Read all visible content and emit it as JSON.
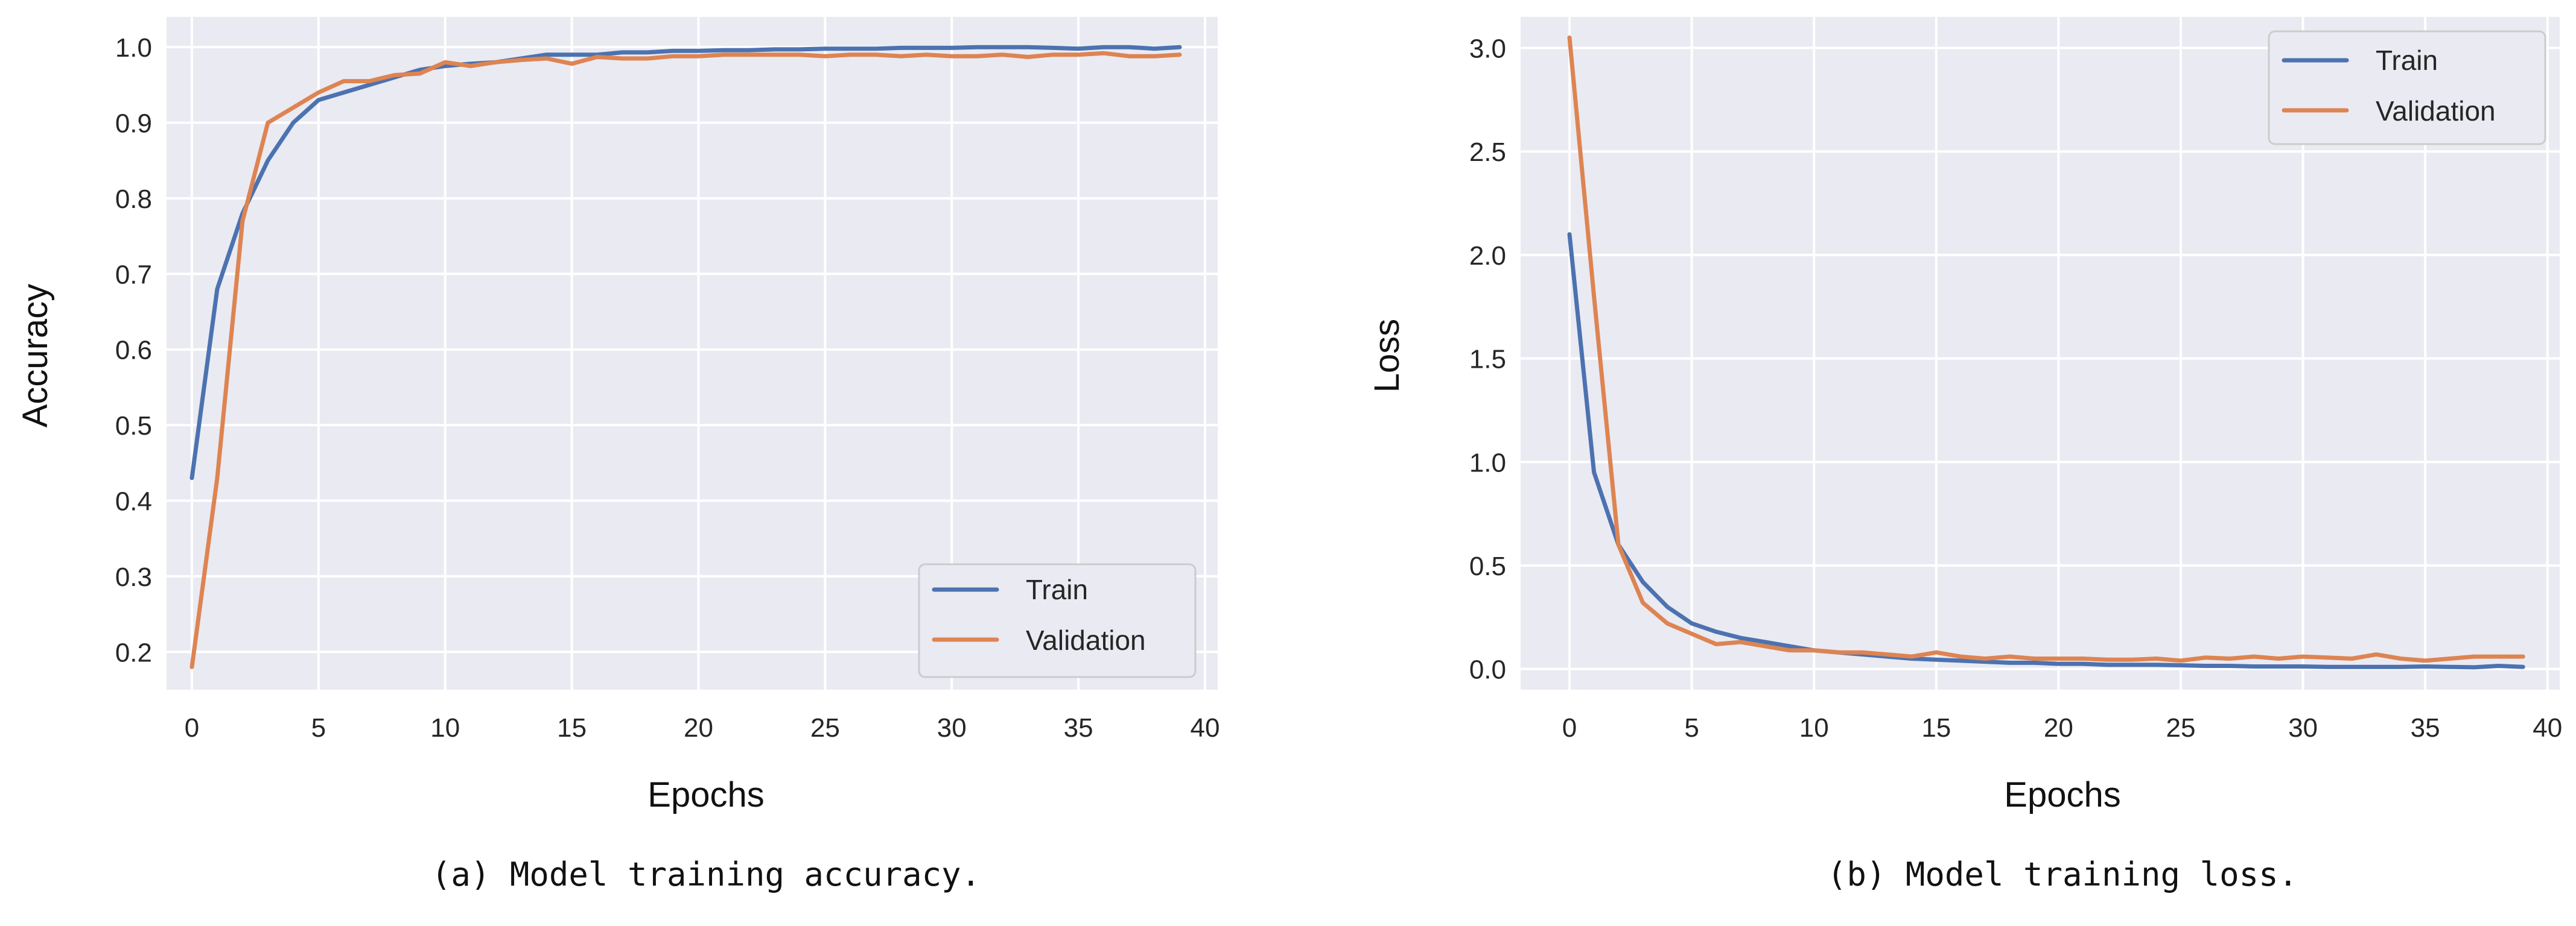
{
  "chart_data": [
    {
      "type": "line",
      "caption": "(a) Model training accuracy.",
      "xlabel": "Epochs",
      "ylabel": "Accuracy",
      "xlim": [
        -1,
        40.5
      ],
      "ylim": [
        0.15,
        1.04
      ],
      "xticks": [
        0,
        5,
        10,
        15,
        20,
        25,
        30,
        35,
        40
      ],
      "yticks": [
        0.2,
        0.3,
        0.4,
        0.5,
        0.6,
        0.7,
        0.8,
        0.9,
        1.0
      ],
      "ytick_labels": [
        "0.2",
        "0.3",
        "0.4",
        "0.5",
        "0.6",
        "0.7",
        "0.8",
        "0.9",
        "1.0"
      ],
      "grid": true,
      "legend": "lower-right",
      "series": [
        {
          "name": "Train",
          "color": "#4c72b0",
          "values": [
            0.43,
            0.68,
            0.78,
            0.85,
            0.9,
            0.93,
            0.94,
            0.95,
            0.96,
            0.97,
            0.975,
            0.978,
            0.98,
            0.985,
            0.99,
            0.99,
            0.99,
            0.993,
            0.993,
            0.995,
            0.995,
            0.996,
            0.996,
            0.997,
            0.997,
            0.998,
            0.998,
            0.998,
            0.999,
            0.999,
            0.999,
            1.0,
            1.0,
            1.0,
            0.999,
            0.998,
            1.0,
            1.0,
            0.998,
            1.0
          ]
        },
        {
          "name": "Validation",
          "color": "#dd8452",
          "values": [
            0.18,
            0.43,
            0.77,
            0.9,
            0.92,
            0.94,
            0.955,
            0.955,
            0.963,
            0.965,
            0.98,
            0.975,
            0.98,
            0.983,
            0.985,
            0.978,
            0.987,
            0.985,
            0.985,
            0.988,
            0.988,
            0.99,
            0.99,
            0.99,
            0.99,
            0.988,
            0.99,
            0.99,
            0.988,
            0.99,
            0.988,
            0.988,
            0.99,
            0.987,
            0.99,
            0.99,
            0.992,
            0.988,
            0.988,
            0.99
          ]
        }
      ]
    },
    {
      "type": "line",
      "caption": "(b) Model training loss.",
      "xlabel": "Epochs",
      "ylabel": "Loss",
      "xlim": [
        -2,
        40.5
      ],
      "ylim": [
        -0.1,
        3.15
      ],
      "xticks": [
        0,
        5,
        10,
        15,
        20,
        25,
        30,
        35,
        40
      ],
      "yticks": [
        0.0,
        0.5,
        1.0,
        1.5,
        2.0,
        2.5,
        3.0
      ],
      "ytick_labels": [
        "0.0",
        "0.5",
        "1.0",
        "1.5",
        "2.0",
        "2.5",
        "3.0"
      ],
      "grid": true,
      "legend": "top-right",
      "series": [
        {
          "name": "Train",
          "color": "#4c72b0",
          "values": [
            2.1,
            0.95,
            0.6,
            0.42,
            0.3,
            0.22,
            0.18,
            0.15,
            0.13,
            0.11,
            0.09,
            0.08,
            0.07,
            0.06,
            0.05,
            0.045,
            0.04,
            0.035,
            0.03,
            0.03,
            0.025,
            0.025,
            0.02,
            0.02,
            0.02,
            0.018,
            0.015,
            0.015,
            0.012,
            0.012,
            0.012,
            0.01,
            0.01,
            0.01,
            0.01,
            0.012,
            0.01,
            0.008,
            0.015,
            0.01
          ]
        },
        {
          "name": "Validation",
          "color": "#dd8452",
          "values": [
            3.05,
            1.8,
            0.6,
            0.32,
            0.22,
            0.17,
            0.12,
            0.13,
            0.11,
            0.09,
            0.09,
            0.08,
            0.08,
            0.07,
            0.06,
            0.08,
            0.06,
            0.05,
            0.06,
            0.05,
            0.05,
            0.05,
            0.045,
            0.045,
            0.05,
            0.04,
            0.055,
            0.05,
            0.06,
            0.05,
            0.06,
            0.055,
            0.05,
            0.07,
            0.05,
            0.04,
            0.05,
            0.06,
            0.06,
            0.06
          ]
        }
      ]
    }
  ]
}
